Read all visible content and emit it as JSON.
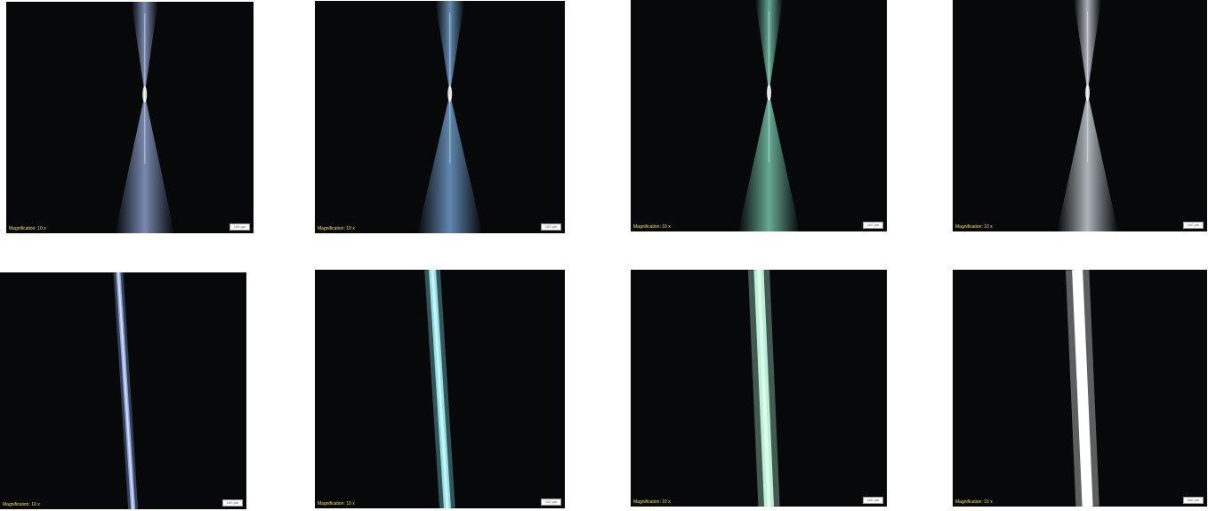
{
  "figure": {
    "panels": [
      {
        "caption": "Magnification: 10 x",
        "scale_label": "100 µm",
        "beam": "focused",
        "color": "#9fb4e6"
      },
      {
        "caption": "Magnification: 10 x",
        "scale_label": "100 µm",
        "beam": "focused",
        "color": "#7fb2e6"
      },
      {
        "caption": "Magnification: 10 x",
        "scale_label": "100 µm",
        "beam": "focused",
        "color": "#86e0c0"
      },
      {
        "caption": "Magnification: 10 x",
        "scale_label": "100 µm",
        "beam": "focused",
        "color": "#e4ecf4"
      },
      {
        "caption": "Magnification: 10 x",
        "scale_label": "100 µm",
        "beam": "collimated",
        "color": "#93a9e8"
      },
      {
        "caption": "Magnification: 10 x",
        "scale_label": "100 µm",
        "beam": "collimated",
        "color": "#8fe2ec"
      },
      {
        "caption": "Magnification: 10 x",
        "scale_label": "100 µm",
        "beam": "collimated",
        "color": "#b8f2d6"
      },
      {
        "caption": "Magnification: 10 x",
        "scale_label": "100 µm",
        "beam": "collimated",
        "color": "#ffffff"
      }
    ]
  }
}
